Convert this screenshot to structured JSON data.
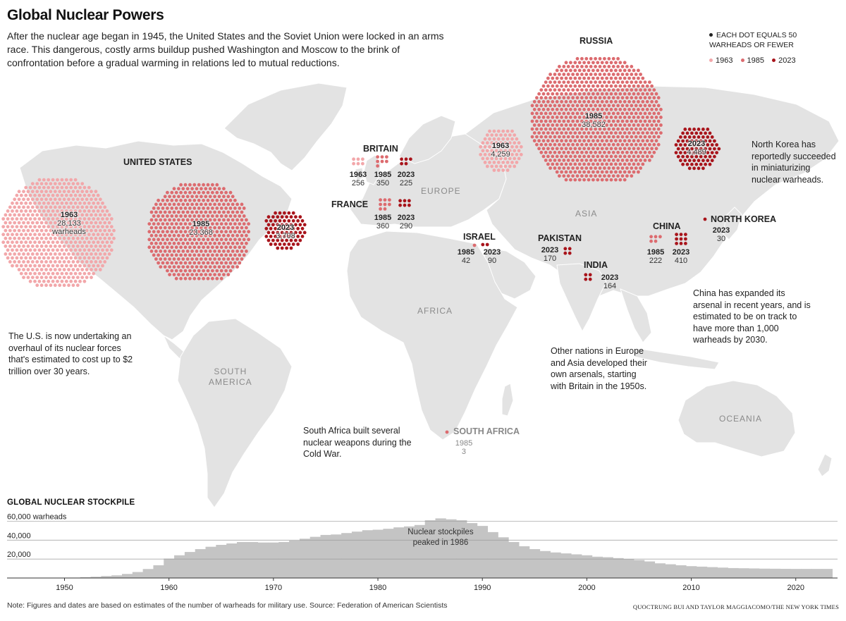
{
  "title": "Global Nuclear Powers",
  "intro": "After the nuclear age began in 1945, the United States and the Soviet Union were locked in an arms race. This dangerous, costly arms buildup pushed Washington and Moscow to the brink of confrontation before a gradual warming in relations led to mutual reductions.",
  "legend": {
    "note_line1": "EACH DOT EQUALS 50",
    "note_line2": "WARHEADS OR FEWER",
    "keys": [
      {
        "label": "1963",
        "color": "#f2a7aa"
      },
      {
        "label": "1985",
        "color": "#dc6b6f"
      },
      {
        "label": "2023",
        "color": "#a8141b"
      }
    ]
  },
  "regions": {
    "europe": "EUROPE",
    "asia": "ASIA",
    "africa": "AFRICA",
    "south_america_1": "SOUTH",
    "south_america_2": "AMERICA",
    "oceania": "OCEANIA"
  },
  "countries": {
    "russia": {
      "name": "RUSSIA",
      "y1963": "1963",
      "v1963": "4,259",
      "y1985": "1985",
      "v1985": "38,582",
      "y2023": "2023",
      "v2023": "4,489"
    },
    "united_states": {
      "name": "UNITED STATES",
      "y1963": "1963",
      "v1963": "28,133",
      "unit": "warheads",
      "y1985": "1985",
      "v1985": "23,368",
      "y2023": "2023",
      "v2023": "3,708"
    },
    "britain": {
      "name": "BRITAIN",
      "y1963": "1963",
      "v1963": "256",
      "y1985": "1985",
      "v1985": "350",
      "y2023": "2023",
      "v2023": "225"
    },
    "france": {
      "name": "FRANCE",
      "y1985": "1985",
      "v1985": "360",
      "y2023": "2023",
      "v2023": "290"
    },
    "israel": {
      "name": "ISRAEL",
      "y1985": "1985",
      "v1985": "42",
      "y2023": "2023",
      "v2023": "90"
    },
    "pakistan": {
      "name": "PAKISTAN",
      "y2023": "2023",
      "v2023": "170"
    },
    "india": {
      "name": "INDIA",
      "y2023": "2023",
      "v2023": "164"
    },
    "china": {
      "name": "CHINA",
      "y1985": "1985",
      "v1985": "222",
      "y2023": "2023",
      "v2023": "410"
    },
    "north_korea": {
      "name": "NORTH KOREA",
      "y2023": "2023",
      "v2023": "30"
    },
    "south_africa": {
      "name": "SOUTH AFRICA",
      "y1985": "1985",
      "v1985": "3"
    }
  },
  "callouts": {
    "north_korea": "North Korea has reportedly succeeded in miniaturizing nuclear warheads.",
    "us": "The U.S. is now undertaking an overhaul of its nuclear forces that's estimated to cost up to $2 trillion over 30 years.",
    "china": "China has expanded its arsenal in recent years, and is estimated to be on track to have more than 1,000 warheads by 2030.",
    "others": "Other nations in Europe and Asia developed their own arsenals, starting with Britain in the 1950s.",
    "south_africa": "South Africa built several nuclear weapons during the Cold War."
  },
  "chart": {
    "title": "GLOBAL NUCLEAR STOCKPILE",
    "annotation_line1": "Nuclear stockpiles",
    "annotation_line2": "peaked in 1986",
    "footnote": "Note: Figures and dates are based on estimates of the number of warheads for military use. Source: Federation of American Scientists",
    "credit": "QUOCTRUNG BUI AND TAYLOR MAGGIACOMO/THE NEW YORK TIMES"
  },
  "chart_data": {
    "type": "area",
    "title": "GLOBAL NUCLEAR STOCKPILE",
    "xlabel": "",
    "ylabel": "",
    "y_tick_labels": [
      "20,000",
      "40,000",
      "60,000 warheads"
    ],
    "y_ticks": [
      20000,
      40000,
      60000
    ],
    "x_ticks": [
      1950,
      1960,
      1970,
      1980,
      1990,
      2000,
      2010,
      2020
    ],
    "xlim": [
      1944.5,
      2024
    ],
    "ylim": [
      0,
      70000
    ],
    "grid": true,
    "series_color": "#c4c4c4",
    "x": [
      1945,
      1946,
      1947,
      1948,
      1949,
      1950,
      1951,
      1952,
      1953,
      1954,
      1955,
      1956,
      1957,
      1958,
      1959,
      1960,
      1961,
      1962,
      1963,
      1964,
      1965,
      1966,
      1967,
      1968,
      1969,
      1970,
      1971,
      1972,
      1973,
      1974,
      1975,
      1976,
      1977,
      1978,
      1979,
      1980,
      1981,
      1982,
      1983,
      1984,
      1985,
      1986,
      1987,
      1988,
      1989,
      1990,
      1991,
      1992,
      1993,
      1994,
      1995,
      1996,
      1997,
      1998,
      1999,
      2000,
      2001,
      2002,
      2003,
      2004,
      2005,
      2006,
      2007,
      2008,
      2009,
      2010,
      2011,
      2012,
      2013,
      2014,
      2015,
      2016,
      2017,
      2018,
      2019,
      2020,
      2021,
      2022,
      2023
    ],
    "values": [
      2,
      9,
      13,
      50,
      170,
      300,
      440,
      850,
      1300,
      2100,
      2800,
      4300,
      6300,
      9500,
      13500,
      20500,
      24000,
      27500,
      30500,
      33000,
      35000,
      36500,
      38000,
      38000,
      37500,
      37500,
      38000,
      39500,
      41500,
      43500,
      45500,
      46000,
      47500,
      49000,
      50500,
      51000,
      52000,
      53500,
      54500,
      56000,
      61000,
      63000,
      62000,
      61000,
      58000,
      55000,
      48500,
      43000,
      38000,
      33500,
      30500,
      28500,
      27000,
      26000,
      25000,
      24000,
      22500,
      22000,
      21000,
      20000,
      19000,
      17500,
      15500,
      14500,
      13500,
      12500,
      12000,
      11500,
      11000,
      10500,
      10300,
      10100,
      9900,
      9800,
      9700,
      9600,
      9600,
      9600,
      9600
    ],
    "annotations": [
      {
        "x": 1986,
        "text": "Nuclear stockpiles peaked in 1986"
      }
    ],
    "map_clusters": [
      {
        "country": "UNITED STATES",
        "year": 1963,
        "warheads": 28133
      },
      {
        "country": "UNITED STATES",
        "year": 1985,
        "warheads": 23368
      },
      {
        "country": "UNITED STATES",
        "year": 2023,
        "warheads": 3708
      },
      {
        "country": "RUSSIA",
        "year": 1963,
        "warheads": 4259
      },
      {
        "country": "RUSSIA",
        "year": 1985,
        "warheads": 38582
      },
      {
        "country": "RUSSIA",
        "year": 2023,
        "warheads": 4489
      },
      {
        "country": "BRITAIN",
        "year": 1963,
        "warheads": 256
      },
      {
        "country": "BRITAIN",
        "year": 1985,
        "warheads": 350
      },
      {
        "country": "BRITAIN",
        "year": 2023,
        "warheads": 225
      },
      {
        "country": "FRANCE",
        "year": 1985,
        "warheads": 360
      },
      {
        "country": "FRANCE",
        "year": 2023,
        "warheads": 290
      },
      {
        "country": "ISRAEL",
        "year": 1985,
        "warheads": 42
      },
      {
        "country": "ISRAEL",
        "year": 2023,
        "warheads": 90
      },
      {
        "country": "PAKISTAN",
        "year": 2023,
        "warheads": 170
      },
      {
        "country": "INDIA",
        "year": 2023,
        "warheads": 164
      },
      {
        "country": "CHINA",
        "year": 1985,
        "warheads": 222
      },
      {
        "country": "CHINA",
        "year": 2023,
        "warheads": 410
      },
      {
        "country": "NORTH KOREA",
        "year": 2023,
        "warheads": 30
      },
      {
        "country": "SOUTH AFRICA",
        "year": 1985,
        "warheads": 3
      }
    ],
    "dot_unit": 50
  }
}
